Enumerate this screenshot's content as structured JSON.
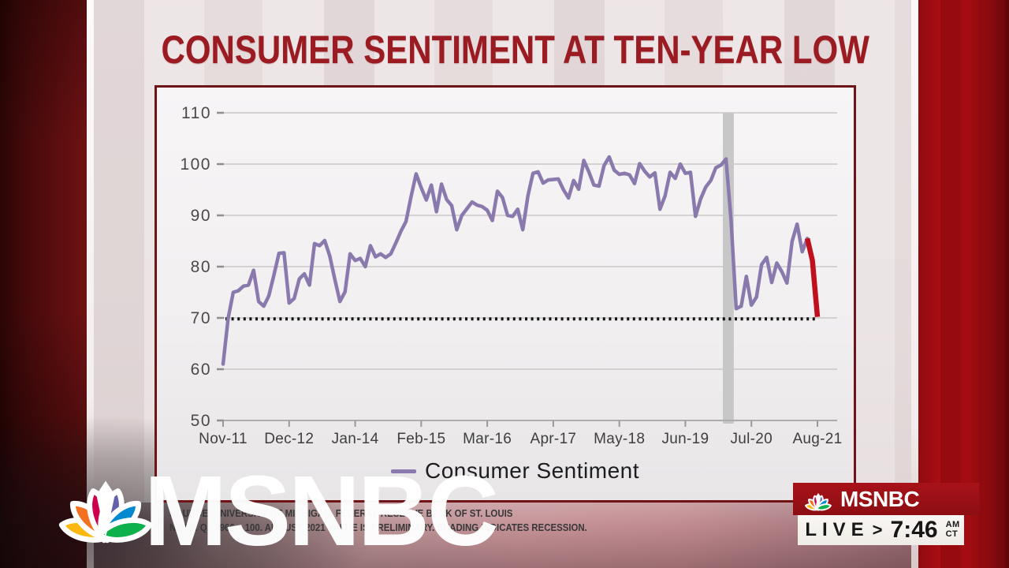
{
  "headline": "CONSUMER SENTIMENT AT TEN-YEAR LOW",
  "chart_data": {
    "type": "line",
    "legend": "Consumer Sentiment",
    "legend_position": "bottom",
    "grid": true,
    "ylim": [
      50,
      110
    ],
    "y_ticks": [
      50,
      60,
      70,
      80,
      90,
      100,
      110
    ],
    "x_tick_labels": [
      "Nov-11",
      "Dec-12",
      "Jan-14",
      "Feb-15",
      "Mar-16",
      "Apr-17",
      "May-18",
      "Jun-19",
      "Jul-20",
      "Aug-21"
    ],
    "months_per_tick": 13,
    "line_color": "#8a79ad",
    "red_segment_color": "#c0101d",
    "red_segment_points": 2,
    "threshold_line": {
      "value": 69.8,
      "style": "dotted",
      "color": "#141414"
    },
    "recession_band": {
      "from_month_index": 99,
      "to_month_index": 101,
      "color": "#c7c7c7"
    },
    "values": [
      61.0,
      69.9,
      75.0,
      75.3,
      76.2,
      76.4,
      79.3,
      73.2,
      72.3,
      74.3,
      78.3,
      82.6,
      82.7,
      72.9,
      73.8,
      77.6,
      78.6,
      76.4,
      84.5,
      84.1,
      85.1,
      82.1,
      77.5,
      73.2,
      75.1,
      82.5,
      81.2,
      81.6,
      80.0,
      84.1,
      81.9,
      82.5,
      81.8,
      82.5,
      84.6,
      86.9,
      88.8,
      93.6,
      98.1,
      95.4,
      93.0,
      95.9,
      90.7,
      96.1,
      93.1,
      91.9,
      87.2,
      90.0,
      91.3,
      92.6,
      92.0,
      91.7,
      91.0,
      89.0,
      94.7,
      93.5,
      90.0,
      89.8,
      91.2,
      87.2,
      93.8,
      98.2,
      98.5,
      96.3,
      96.9,
      97.0,
      97.1,
      95.0,
      93.4,
      96.8,
      95.1,
      100.7,
      98.5,
      95.9,
      95.7,
      99.7,
      101.4,
      98.8,
      98.0,
      98.2,
      97.9,
      96.2,
      100.1,
      98.6,
      97.5,
      98.3,
      91.2,
      93.8,
      98.4,
      97.2,
      100.0,
      98.2,
      98.4,
      89.8,
      93.2,
      95.5,
      96.8,
      99.3,
      99.8,
      101.0,
      89.1,
      71.8,
      72.3,
      78.1,
      72.5,
      74.1,
      80.4,
      81.8,
      76.9,
      80.7,
      79.0,
      76.8,
      84.9,
      88.3,
      82.9,
      85.5,
      81.2,
      70.2
    ]
  },
  "source_line1": "SOURCE: UNIVERSITY OF MICHIGAN, FEDERAL RESERVE BANK OF ST. LOUIS",
  "source_line2": "NOTE: Q1 1966 = 100. AUGUST 2021 VALUE IS PRELIMINARY. SHADING INDICATES RECESSION.",
  "watermark": "MSNBC",
  "bug": {
    "network": "MSNBC",
    "live_label": "LIVE",
    "chevron": ">",
    "time": "7:46",
    "meridiem": "AM",
    "timezone": "CT"
  },
  "brand": {
    "accent_red": "#9b1b22",
    "peacock_colors": [
      "#FCB711",
      "#F37021",
      "#CC004C",
      "#6460AA",
      "#0089D0",
      "#0DB14B"
    ]
  }
}
